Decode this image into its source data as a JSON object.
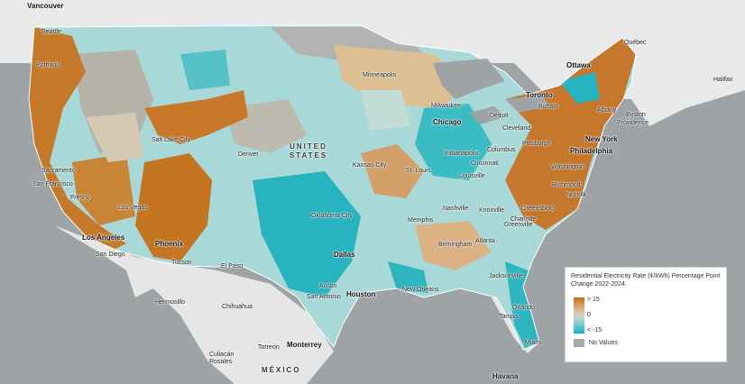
{
  "colors": {
    "increase": "#c1711a",
    "neutral": "#d8d2c4",
    "decrease": "#16b0bd",
    "no_values": "#a9a9a9",
    "water": "#9ea3a6",
    "land": "#e9e9e9"
  },
  "legend": {
    "title": "Residential Electricity Rate (¢/kWh) Percentage Point Change 2022-2024",
    "high_label": "> 15",
    "mid_label": "0",
    "low_label": "< -15",
    "no_values_label": "No Values"
  },
  "labels": {
    "vancouver": "Vancouver",
    "seattle": "Seattle",
    "portland": "Portland",
    "salt_lake_city": "Salt Lake City",
    "sacramento": "Sacramento",
    "san_francisco": "San Francisco",
    "fresno": "Fresno",
    "las_vegas": "Las Vegas",
    "los_angeles": "Los Angeles",
    "san_diego": "San Diego",
    "phoenix": "Phoenix",
    "tucson": "Tucson",
    "el_paso": "El Paso",
    "denver": "Denver",
    "united_states": "UNITED STATES",
    "minneapolis": "Minneapolis",
    "milwaukee": "Milwaukee",
    "chicago": "Chicago",
    "detroit": "Detroit",
    "kansas_city": "Kansas City",
    "st_louis": "St. Louis",
    "indianapolis": "Indianapolis",
    "columbus": "Columbus",
    "cincinnati": "Cincinnati",
    "louisville": "Louisville",
    "cleveland": "Cleveland",
    "pittsburgh": "Pittsburgh",
    "oklahoma_city": "Oklahoma City",
    "memphis": "Memphis",
    "nashville": "Nashville",
    "knoxville": "Knoxville",
    "dallas": "Dallas",
    "birmingham": "Birmingham",
    "atlanta": "Atlanta",
    "greensboro": "Greensboro",
    "charlotte": "Charlotte",
    "greenville": "Greenville",
    "austin": "Austin",
    "san_antonio": "San Antonio",
    "houston": "Houston",
    "new_orleans": "New Orleans",
    "jacksonville": "Jacksonville",
    "orlando": "Orlando",
    "tampa": "Tampa",
    "miami": "Miami",
    "havana": "Havana",
    "toronto": "Toronto",
    "ottawa": "Ottawa",
    "quebec": "Québec",
    "halifax": "Halifax",
    "buffalo": "Buffalo",
    "albany": "Albany",
    "boston": "Boston",
    "providence": "Providence",
    "new_york": "New York",
    "philadelphia": "Philadelphia",
    "washington": "Washington",
    "richmond": "Richmond",
    "norfolk": "Norfolk",
    "hermosillo": "Hermosillo",
    "chihuahua": "Chihuahua",
    "monterrey": "Monterrey",
    "torreon": "Torreón",
    "culiacan_rosales": "Culiacán Rosales",
    "mexico": "MÉXICO"
  }
}
